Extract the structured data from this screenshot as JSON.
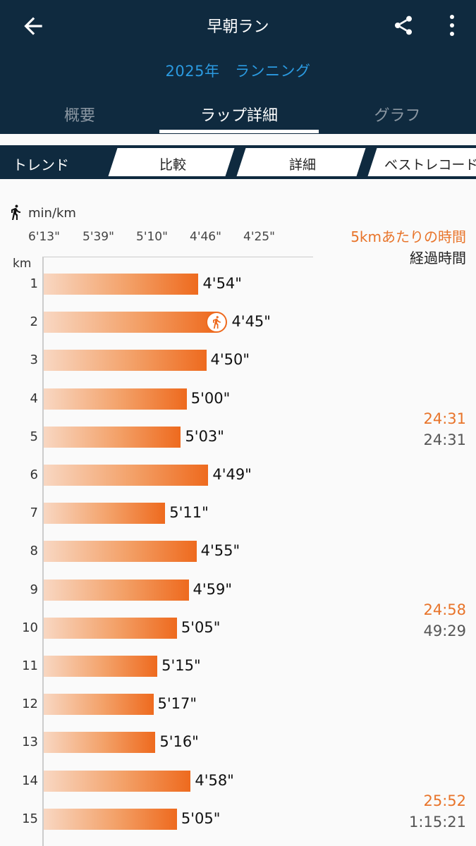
{
  "header": {
    "title": "早朝ラン",
    "subtitle": "2025年　ランニング",
    "back_icon": "arrow-left-icon",
    "share_icon": "share-icon",
    "more_icon": "more-vertical-icon"
  },
  "tabs": [
    {
      "label": "概要",
      "active": false
    },
    {
      "label": "ラップ詳細",
      "active": true
    },
    {
      "label": "グラフ",
      "active": false
    }
  ],
  "segments": {
    "trend": "トレンド",
    "compare": "比較",
    "detail": "詳細",
    "best": "ベストレコード"
  },
  "chart": {
    "unit": "min/km",
    "km_label": "km",
    "legend_split": "5kmあたりの時間",
    "legend_elapsed": "経過時間",
    "ticks": [
      "6'13\"",
      "5'39\"",
      "5'10\"",
      "4'46\"",
      "4'25\""
    ]
  },
  "chart_data": {
    "type": "bar",
    "orientation": "horizontal",
    "categories": [
      "1",
      "2",
      "3",
      "4",
      "5",
      "6",
      "7",
      "8",
      "9",
      "10",
      "11",
      "12",
      "13",
      "14",
      "15"
    ],
    "values": [
      "4'54\"",
      "4'45\"",
      "4'50\"",
      "5'00\"",
      "5'03\"",
      "4'49\"",
      "5'11\"",
      "4'55\"",
      "4'59\"",
      "5'05\"",
      "5'15\"",
      "5'17\"",
      "5'16\"",
      "4'58\"",
      "5'05\""
    ],
    "values_seconds": [
      294,
      285,
      290,
      300,
      303,
      289,
      311,
      295,
      299,
      305,
      315,
      317,
      316,
      298,
      305
    ],
    "xlabel": "min/km",
    "ylabel": "km",
    "best_lap": 2,
    "splits": [
      {
        "after_km": 5,
        "split": "24:31",
        "elapsed": "24:31"
      },
      {
        "after_km": 10,
        "split": "24:58",
        "elapsed": "49:29"
      },
      {
        "after_km": 15,
        "split": "25:52",
        "elapsed": "1:15:21"
      }
    ]
  },
  "colors": {
    "header_bg": "#0f2a3f",
    "accent_blue": "#2b9ae0",
    "bar_orange": "#ee6a1e",
    "split_orange": "#e8742a"
  }
}
